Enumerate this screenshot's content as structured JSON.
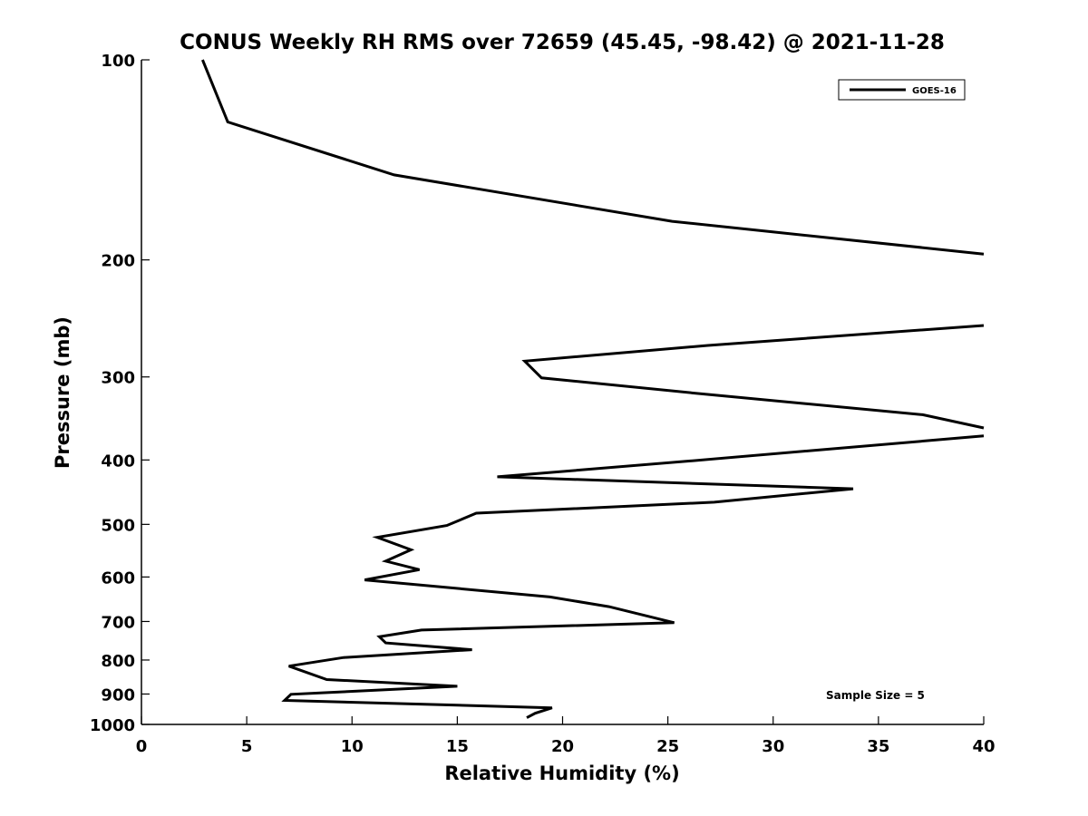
{
  "chart_data": {
    "type": "line",
    "title": "CONUS Weekly RH RMS over 72659 (45.45, -98.42) @ 2021-11-28",
    "xlabel": "Relative Humidity (%)",
    "ylabel": "Pressure (mb)",
    "xlim": [
      0,
      40
    ],
    "ylim": [
      100,
      1000
    ],
    "yscale": "log",
    "y_reversed": true,
    "grid": false,
    "legend_position": "top-right",
    "x_ticks": [
      "0",
      "5",
      "10",
      "15",
      "20",
      "25",
      "30",
      "35",
      "40"
    ],
    "y_ticks": [
      {
        "label": "100",
        "value": 100
      },
      {
        "label": "200",
        "value": 200
      },
      {
        "label": "300",
        "value": 300
      },
      {
        "label": "400",
        "value": 400
      },
      {
        "label": "500",
        "value": 500
      },
      {
        "label": "600",
        "value": 600
      },
      {
        "label": "700",
        "value": 700
      },
      {
        "label": "800",
        "value": 800
      },
      {
        "label": "900",
        "value": 900
      },
      {
        "label": "1000",
        "value": 1000
      }
    ],
    "annotation": "Sample Size = 5",
    "series": [
      {
        "name": "GOES-16",
        "color": "#000000",
        "segments": [
          [
            {
              "x": 2.9,
              "y": 100
            },
            {
              "x": 4.1,
              "y": 124
            },
            {
              "x": 12.0,
              "y": 149
            },
            {
              "x": 25.2,
              "y": 175
            },
            {
              "x": 40.0,
              "y": 196
            }
          ],
          [
            {
              "x": 40.0,
              "y": 251
            },
            {
              "x": 26.9,
              "y": 269
            },
            {
              "x": 18.2,
              "y": 284
            },
            {
              "x": 19.0,
              "y": 301
            },
            {
              "x": 27.0,
              "y": 319
            },
            {
              "x": 37.1,
              "y": 342
            },
            {
              "x": 40.0,
              "y": 358
            }
          ],
          [
            {
              "x": 40.0,
              "y": 368
            },
            {
              "x": 25.8,
              "y": 402
            },
            {
              "x": 16.9,
              "y": 424
            },
            {
              "x": 33.8,
              "y": 442
            },
            {
              "x": 27.2,
              "y": 463
            },
            {
              "x": 15.9,
              "y": 481
            },
            {
              "x": 14.5,
              "y": 502
            },
            {
              "x": 11.2,
              "y": 523
            },
            {
              "x": 12.8,
              "y": 546
            },
            {
              "x": 11.6,
              "y": 568
            },
            {
              "x": 13.2,
              "y": 585
            },
            {
              "x": 10.6,
              "y": 606
            },
            {
              "x": 19.4,
              "y": 643
            },
            {
              "x": 22.2,
              "y": 665
            },
            {
              "x": 25.3,
              "y": 703
            },
            {
              "x": 13.3,
              "y": 721
            },
            {
              "x": 11.3,
              "y": 738
            },
            {
              "x": 11.6,
              "y": 754
            },
            {
              "x": 15.7,
              "y": 772
            },
            {
              "x": 9.6,
              "y": 793
            },
            {
              "x": 7.0,
              "y": 817
            },
            {
              "x": 8.8,
              "y": 856
            },
            {
              "x": 15.0,
              "y": 876
            },
            {
              "x": 7.1,
              "y": 901
            },
            {
              "x": 6.8,
              "y": 920
            },
            {
              "x": 19.5,
              "y": 944
            },
            {
              "x": 18.7,
              "y": 962
            },
            {
              "x": 18.3,
              "y": 977
            }
          ]
        ]
      }
    ]
  }
}
